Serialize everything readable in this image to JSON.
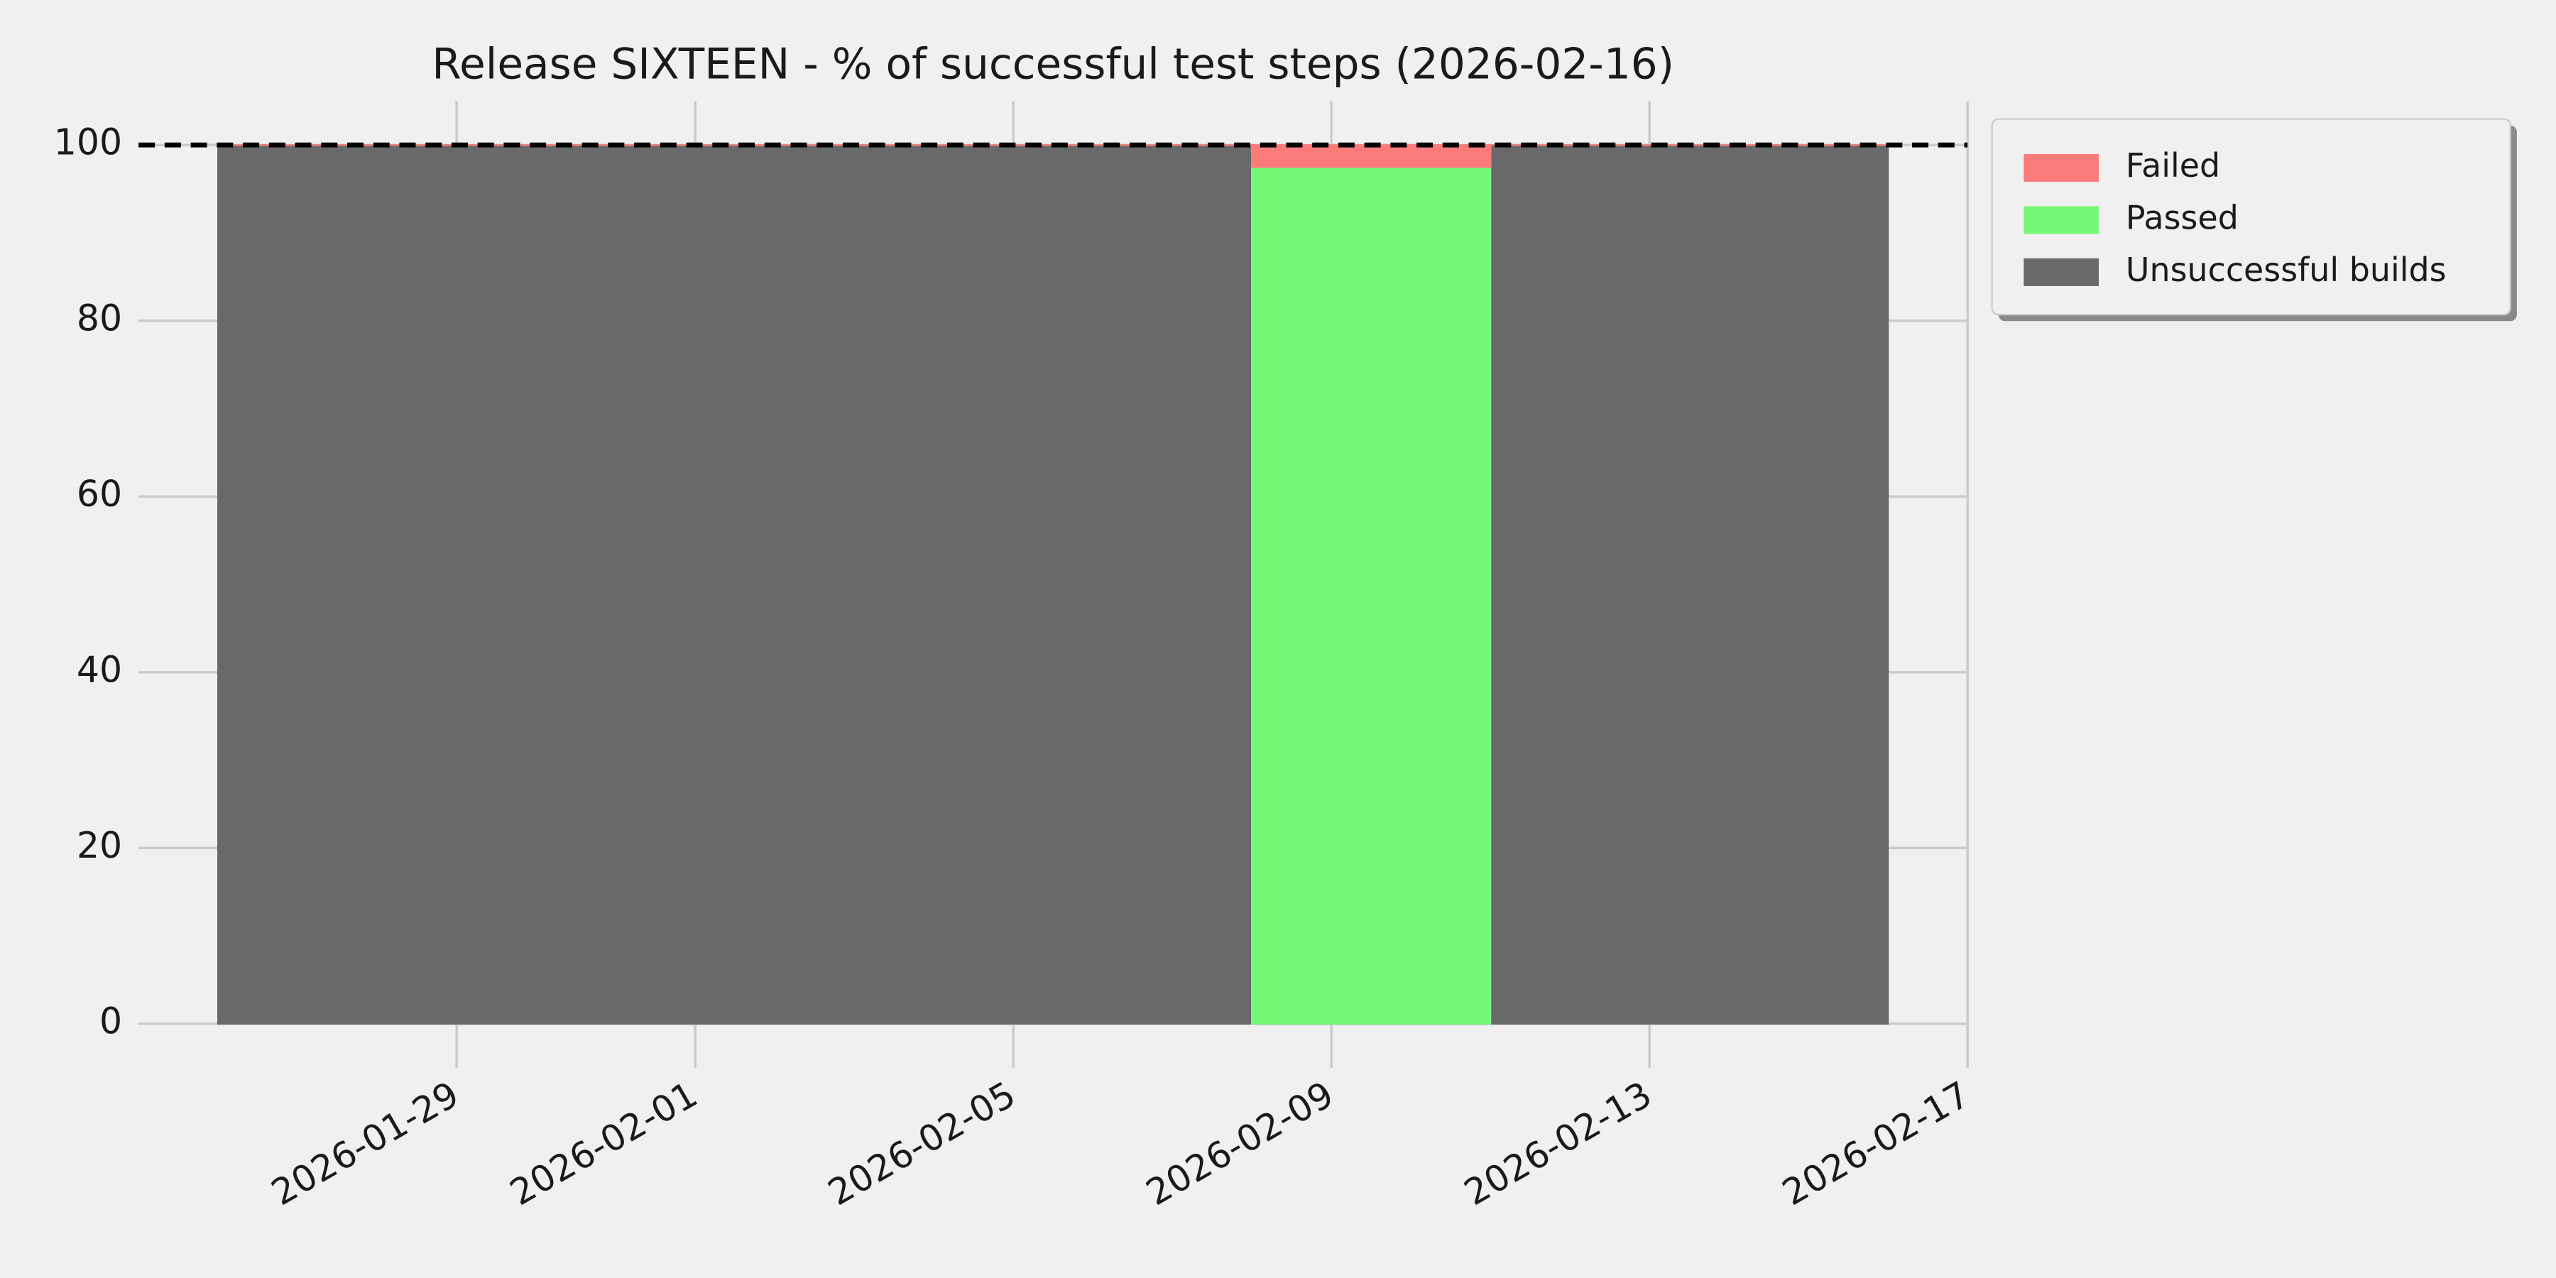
{
  "chart_data": {
    "type": "stackplot",
    "title": "Release SIXTEEN - % of successful test steps (2026-02-16)",
    "x": [
      "2026-01-26",
      "2026-02-08",
      "2026-02-08",
      "2026-02-11",
      "2026-02-11",
      "2026-02-16"
    ],
    "series": [
      {
        "name": "Unsuccessful builds",
        "color": "#696969",
        "values": [
          100,
          100,
          0,
          0,
          100,
          100
        ]
      },
      {
        "name": "Passed",
        "color": "#77f777",
        "values": [
          0,
          0,
          97.5,
          97.5,
          0,
          0
        ]
      },
      {
        "name": "Failed",
        "color": "#fb7b7b",
        "values": [
          0,
          0,
          2.5,
          2.5,
          0,
          0
        ]
      }
    ],
    "hline": 100,
    "xlim": [
      "2026-01-25",
      "2026-02-17"
    ],
    "xticks": [
      "2026-01-29",
      "2026-02-01",
      "2026-02-05",
      "2026-02-09",
      "2026-02-13",
      "2026-02-17"
    ],
    "ylim": [
      -5,
      105
    ],
    "yticks": [
      0,
      20,
      40,
      60,
      80,
      100
    ],
    "grid": true,
    "legend": "outside-upper-right"
  }
}
